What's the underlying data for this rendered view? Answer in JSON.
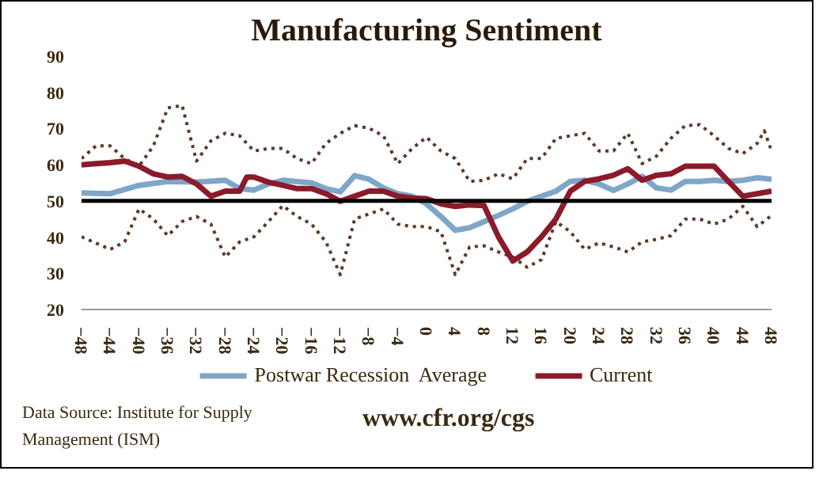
{
  "chart_data": {
    "type": "line",
    "title": "Manufacturing Sentiment",
    "xlim": [
      -48,
      48
    ],
    "xticks": [
      -48,
      -44,
      -40,
      -36,
      -32,
      -28,
      -24,
      -20,
      -16,
      -12,
      -8,
      -4,
      0,
      4,
      8,
      12,
      16,
      20,
      24,
      28,
      32,
      36,
      40,
      44,
      48
    ],
    "ylim": [
      20,
      90
    ],
    "yticks": [
      20,
      30,
      40,
      50,
      60,
      70,
      80,
      90
    ],
    "grid": false,
    "legend": "bottom",
    "ref_lines": [
      {
        "axis": "y",
        "value": 50,
        "color": "#000000"
      }
    ],
    "annotations": [
      "Data Source: Institute for Supply Management (ISM)",
      "www.cfr.org/cgs"
    ],
    "series": [
      {
        "color": "#5c3a28",
        "line_style": "dotted",
        "x": [
          -48,
          -46,
          -44,
          -42,
          -40,
          -38,
          -36,
          -34,
          -32,
          -30,
          -28,
          -26,
          -24,
          -22,
          -20,
          -18,
          -16,
          -14,
          -12,
          -10,
          -8,
          -6,
          -4,
          -2,
          0,
          2,
          4,
          6,
          8,
          10,
          12,
          14,
          16,
          18,
          20,
          22,
          24,
          26,
          28,
          30,
          32,
          34,
          36,
          38,
          40,
          42,
          44,
          46,
          47,
          48
        ],
        "values": [
          61.7,
          65.2,
          65.2,
          61.7,
          59.6,
          65.2,
          75.7,
          76.4,
          61,
          66.6,
          68.7,
          68,
          63.8,
          64.5,
          64.5,
          61.7,
          60.3,
          65.9,
          68.7,
          70.8,
          70.1,
          68,
          60.3,
          64.5,
          67.6,
          63.8,
          61.7,
          55.4,
          55.7,
          57.5,
          56.1,
          61.7,
          61.7,
          67.3,
          68,
          68.7,
          63.8,
          63.8,
          68.7,
          60.3,
          62.4,
          67.3,
          70.8,
          71.1,
          68,
          64.5,
          63.1,
          65.9,
          69.4,
          63.8
        ]
      },
      {
        "color": "#5c3a28",
        "line_style": "dotted",
        "x": [
          -48,
          -44,
          -42,
          -40,
          -38,
          -36,
          -34,
          -32,
          -30,
          -28,
          -26,
          -24,
          -22,
          -20,
          -18,
          -16,
          -14,
          -12,
          -10,
          -8,
          -6,
          -4,
          -2,
          0,
          2,
          4,
          6,
          8,
          10,
          12,
          14,
          16,
          18,
          20,
          22,
          24,
          26,
          28,
          30,
          32,
          34,
          36,
          38,
          40,
          42,
          44,
          46,
          48
        ],
        "values": [
          40.1,
          36.6,
          38.7,
          47.8,
          45,
          40.4,
          44.3,
          45.7,
          43.6,
          34.5,
          38.7,
          40.1,
          44.3,
          48.7,
          45.7,
          43.6,
          38.7,
          29.6,
          45,
          46.4,
          47.8,
          43.6,
          42.9,
          42.9,
          41.5,
          29.6,
          37.3,
          37.6,
          35.9,
          34.5,
          31.7,
          33.8,
          44.3,
          41.5,
          36.6,
          38.4,
          37.3,
          35.9,
          38.7,
          39.4,
          40.4,
          45,
          45,
          43.6,
          45,
          48.5,
          42.9,
          46
        ]
      },
      {
        "name": "Postwar Recession  Average",
        "color": "#7ea6c8",
        "x": [
          -48,
          -44,
          -40,
          -36,
          -32,
          -28,
          -26,
          -24,
          -22,
          -20,
          -16,
          -14,
          -12,
          -10,
          -8,
          -6,
          -4,
          -2,
          0,
          2,
          4,
          6,
          8,
          10,
          12,
          14,
          16,
          18,
          20,
          22,
          24,
          26,
          28,
          30,
          32,
          34,
          36,
          38,
          40,
          42,
          44,
          46,
          48
        ],
        "values": [
          52.2,
          52,
          54.3,
          55.4,
          55.2,
          55.7,
          53.4,
          53,
          54.7,
          55.7,
          55,
          53.4,
          52.5,
          57,
          56,
          53.6,
          52,
          51.3,
          49.2,
          45.7,
          41.9,
          42.6,
          44.3,
          46,
          47.8,
          49.9,
          51.3,
          52.7,
          55.4,
          55.7,
          54.7,
          52.9,
          54.7,
          56.8,
          53.6,
          53,
          55.4,
          55.4,
          55.7,
          55.4,
          55.7,
          56.4,
          56
        ]
      },
      {
        "name": "Current",
        "color": "#8b1a2b",
        "x": [
          -48,
          -46,
          -44,
          -42,
          -40,
          -38,
          -36,
          -34,
          -32,
          -30,
          -28,
          -26,
          -25,
          -24,
          -22,
          -20,
          -18,
          -16,
          -14,
          -12,
          -10,
          -8,
          -6,
          -4,
          -2,
          0,
          2,
          4,
          6,
          8,
          10,
          12,
          14,
          16,
          18,
          20,
          22,
          24,
          26,
          28,
          30,
          32,
          34,
          36,
          38,
          40,
          42,
          44,
          46,
          48
        ],
        "values": [
          60,
          60.3,
          60.6,
          61,
          59.6,
          57.5,
          56.6,
          56.8,
          54.7,
          51.3,
          52.7,
          52.7,
          56.6,
          56.6,
          55.2,
          54.3,
          53.4,
          53.4,
          52,
          49.9,
          51.3,
          52.7,
          52.7,
          51.3,
          50.8,
          50.6,
          49.2,
          48.5,
          48.9,
          48.7,
          40.1,
          33.4,
          35.9,
          40.1,
          45,
          52.7,
          55.4,
          56.1,
          57.1,
          58.9,
          55.7,
          57.1,
          57.5,
          59.6,
          59.6,
          59.6,
          55.4,
          51.3,
          52,
          52.7
        ]
      }
    ]
  }
}
